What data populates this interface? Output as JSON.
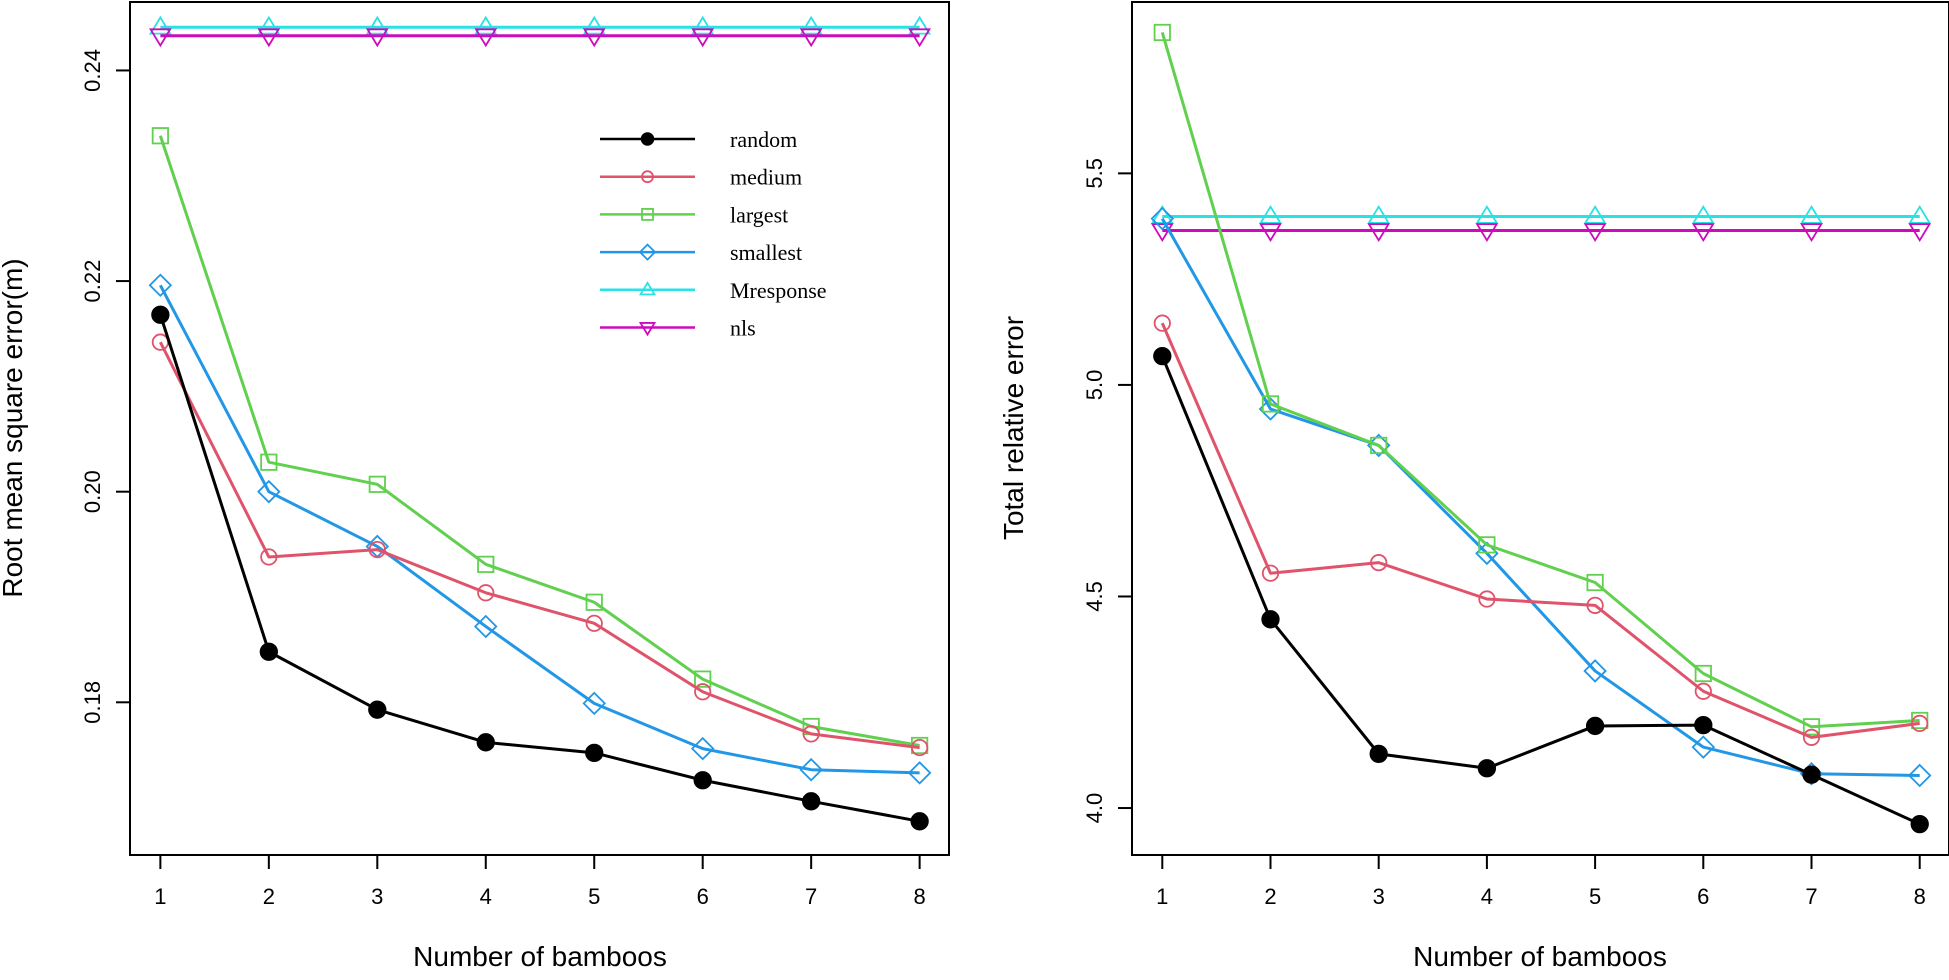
{
  "chart_data": [
    {
      "type": "line",
      "xlabel": "Number of bamboos",
      "ylabel": "Root mean square error(m)",
      "x": [
        1,
        2,
        3,
        4,
        5,
        6,
        7,
        8
      ],
      "xlim": [
        0.72,
        8.28
      ],
      "ylim": [
        0.1655,
        0.2465
      ],
      "yticks": [
        0.18,
        0.2,
        0.22,
        0.24
      ],
      "ytick_labels": [
        "0.18",
        "0.20",
        "0.22",
        "0.24"
      ],
      "legend": "top-right",
      "series": [
        {
          "name": "random",
          "color": "#000000",
          "marker": "filled-circle",
          "values": [
            0.2168,
            0.1848,
            0.1793,
            0.1762,
            0.1752,
            0.1726,
            0.1706,
            0.1687
          ]
        },
        {
          "name": "medium",
          "color": "#DF536B",
          "marker": "open-circle",
          "values": [
            0.2142,
            0.1938,
            0.1945,
            0.1904,
            0.1875,
            0.181,
            0.177,
            0.1757
          ]
        },
        {
          "name": "largest",
          "color": "#61D04F",
          "marker": "open-square",
          "values": [
            0.2338,
            0.2028,
            0.2007,
            0.1931,
            0.1895,
            0.1822,
            0.1777,
            0.1759
          ]
        },
        {
          "name": "smallest",
          "color": "#2297E6",
          "marker": "open-diamond",
          "values": [
            0.2196,
            0.2,
            0.1948,
            0.1872,
            0.1799,
            0.1756,
            0.1736,
            0.1733
          ]
        },
        {
          "name": "Mresponse",
          "color": "#28E2E5",
          "marker": "open-triangle-up",
          "values": [
            0.2441,
            0.2441,
            0.2441,
            0.2441,
            0.2441,
            0.2441,
            0.2441,
            0.2441
          ]
        },
        {
          "name": "nls",
          "color": "#CD0BBC",
          "marker": "open-triangle-down",
          "values": [
            0.2433,
            0.2433,
            0.2433,
            0.2433,
            0.2433,
            0.2433,
            0.2433,
            0.2433
          ]
        }
      ]
    },
    {
      "type": "line",
      "xlabel": "Number of bamboos",
      "ylabel": "Total relative error",
      "x": [
        1,
        2,
        3,
        4,
        5,
        6,
        7,
        8
      ],
      "xlim": [
        0.72,
        8.28
      ],
      "ylim": [
        3.889,
        5.905
      ],
      "yticks": [
        4.0,
        4.5,
        5.0,
        5.5
      ],
      "ytick_labels": [
        "4.0",
        "4.5",
        "5.0",
        "5.5"
      ],
      "series": [
        {
          "name": "random",
          "color": "#000000",
          "marker": "filled-circle",
          "values": [
            5.068,
            4.446,
            4.128,
            4.094,
            4.194,
            4.196,
            4.079,
            3.962
          ]
        },
        {
          "name": "medium",
          "color": "#DF536B",
          "marker": "open-circle",
          "values": [
            5.146,
            4.555,
            4.58,
            4.494,
            4.479,
            4.276,
            4.167,
            4.2
          ]
        },
        {
          "name": "largest",
          "color": "#61D04F",
          "marker": "open-square",
          "values": [
            5.833,
            4.955,
            4.857,
            4.622,
            4.533,
            4.318,
            4.192,
            4.207
          ]
        },
        {
          "name": "smallest",
          "color": "#2297E6",
          "marker": "open-diamond",
          "values": [
            5.393,
            4.943,
            4.857,
            4.602,
            4.324,
            4.144,
            4.081,
            4.077
          ]
        },
        {
          "name": "Mresponse",
          "color": "#28E2E5",
          "marker": "open-triangle-up",
          "values": [
            5.398,
            5.398,
            5.398,
            5.398,
            5.398,
            5.398,
            5.398,
            5.398
          ]
        },
        {
          "name": "nls",
          "color": "#CD0BBC",
          "marker": "open-triangle-down",
          "values": [
            5.365,
            5.365,
            5.365,
            5.365,
            5.365,
            5.365,
            5.365,
            5.365
          ]
        }
      ]
    }
  ]
}
